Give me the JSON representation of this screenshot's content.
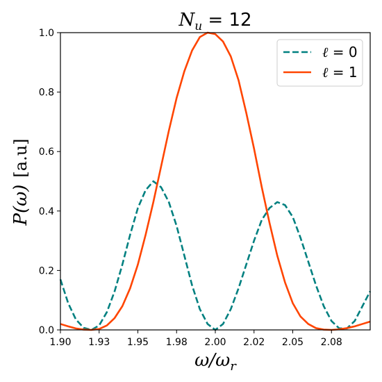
{
  "chart_data": {
    "type": "line",
    "title": "N_u = 12",
    "title_main": "N",
    "title_sub": "u",
    "title_rest": " = 12",
    "xlabel": "ω/ω_r",
    "xlabel_main": "ω/ω",
    "xlabel_sub": "r",
    "ylabel": "P(ω)  [a.u]",
    "ylabel_main": "P(ω)",
    "ylabel_unit": "[a.u]",
    "xlim": [
      1.9,
      2.1
    ],
    "ylim": [
      0.0,
      1.0
    ],
    "xticks": [
      1.9,
      1.925,
      1.95,
      1.975,
      2.0,
      2.025,
      2.05,
      2.075
    ],
    "xtick_labels": [
      "1.90",
      "1.93",
      "1.95",
      "1.98",
      "2.00",
      "2.02",
      "2.05",
      "2.08"
    ],
    "yticks": [
      0.0,
      0.2,
      0.4,
      0.6,
      0.8,
      1.0
    ],
    "ytick_labels": [
      "0.0",
      "0.2",
      "0.4",
      "0.6",
      "0.8",
      "1.0"
    ],
    "grid": false,
    "legend_position": "top-right",
    "series": [
      {
        "name": "ℓ = 0",
        "legend_main": "ℓ",
        "legend_rest": " = 0",
        "color": "#008080",
        "style": "dashed",
        "x": [
          1.9,
          1.905,
          1.91,
          1.915,
          1.92,
          1.925,
          1.93,
          1.935,
          1.94,
          1.945,
          1.95,
          1.955,
          1.96,
          1.965,
          1.97,
          1.975,
          1.98,
          1.985,
          1.99,
          1.995,
          2.0,
          2.005,
          2.01,
          2.015,
          2.02,
          2.025,
          2.03,
          2.035,
          2.04,
          2.045,
          2.05,
          2.055,
          2.06,
          2.065,
          2.07,
          2.075,
          2.08,
          2.085,
          2.09,
          2.095,
          2.1
        ],
        "y": [
          0.17,
          0.09,
          0.035,
          0.007,
          0.0,
          0.015,
          0.06,
          0.13,
          0.22,
          0.32,
          0.41,
          0.47,
          0.5,
          0.48,
          0.43,
          0.35,
          0.25,
          0.15,
          0.07,
          0.02,
          0.0,
          0.02,
          0.07,
          0.14,
          0.22,
          0.3,
          0.37,
          0.41,
          0.43,
          0.42,
          0.38,
          0.31,
          0.23,
          0.15,
          0.08,
          0.03,
          0.005,
          0.005,
          0.03,
          0.08,
          0.13
        ]
      },
      {
        "name": "ℓ = 1",
        "legend_main": "ℓ",
        "legend_rest": " = 1",
        "color": "#ff4500",
        "style": "solid",
        "x": [
          1.9,
          1.905,
          1.91,
          1.915,
          1.92,
          1.925,
          1.93,
          1.935,
          1.94,
          1.945,
          1.95,
          1.955,
          1.96,
          1.965,
          1.97,
          1.975,
          1.98,
          1.985,
          1.99,
          1.995,
          2.0,
          2.005,
          2.01,
          2.015,
          2.02,
          2.025,
          2.03,
          2.035,
          2.04,
          2.045,
          2.05,
          2.055,
          2.06,
          2.065,
          2.07,
          2.075,
          2.08,
          2.085,
          2.09,
          2.095,
          2.1
        ],
        "y": [
          0.02,
          0.012,
          0.005,
          0.001,
          0.0,
          0.003,
          0.015,
          0.04,
          0.08,
          0.14,
          0.22,
          0.32,
          0.43,
          0.55,
          0.67,
          0.78,
          0.87,
          0.94,
          0.985,
          1.0,
          0.995,
          0.97,
          0.92,
          0.84,
          0.73,
          0.61,
          0.48,
          0.36,
          0.25,
          0.16,
          0.09,
          0.045,
          0.02,
          0.006,
          0.001,
          0.0,
          0.002,
          0.006,
          0.012,
          0.02,
          0.028
        ]
      }
    ]
  }
}
